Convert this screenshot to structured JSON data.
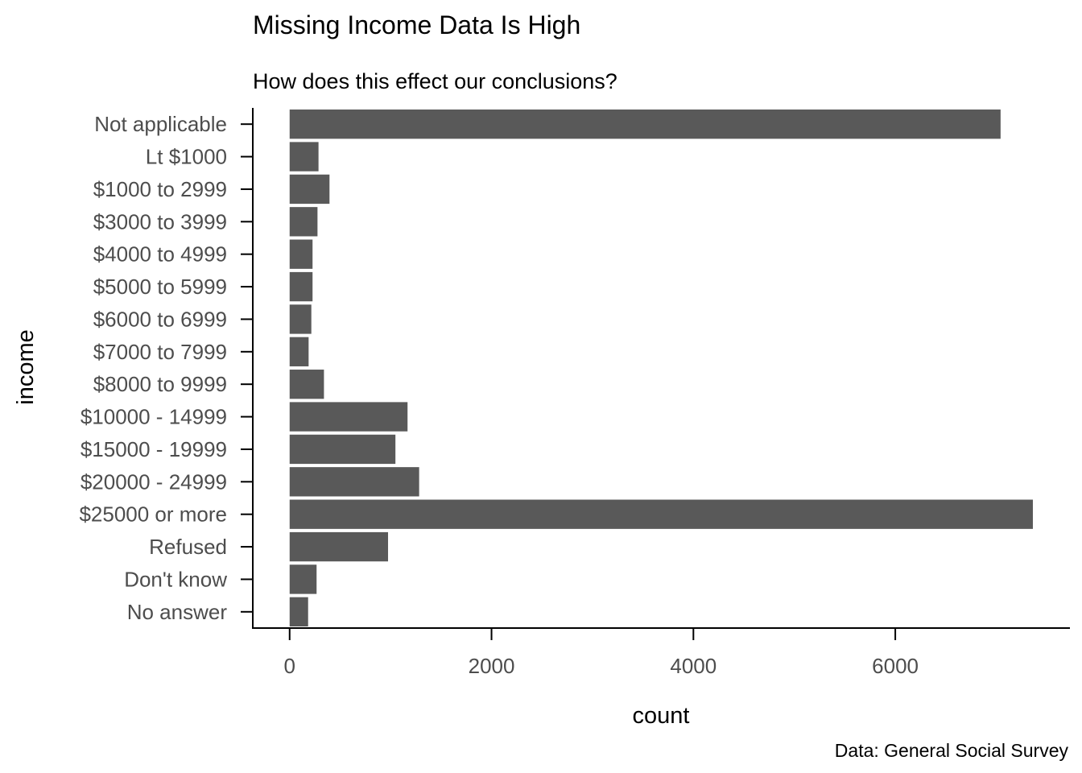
{
  "chart_data": {
    "type": "bar",
    "orientation": "horizontal",
    "title": "Missing Income Data Is High",
    "subtitle": "How does this effect our conclusions?",
    "xlabel": "count",
    "ylabel": "income",
    "caption": "Data: General Social Survey",
    "categories": [
      "Not applicable",
      "Lt $1000",
      "$1000 to 2999",
      "$3000 to 3999",
      "$4000 to 4999",
      "$5000 to 5999",
      "$6000 to 6999",
      "$7000 to 7999",
      "$8000 to 9999",
      "$10000 - 14999",
      "$15000 - 19999",
      "$20000 - 24999",
      "$25000 or more",
      "Refused",
      "Don't know",
      "No answer"
    ],
    "values": [
      7043,
      286,
      395,
      276,
      227,
      227,
      215,
      188,
      340,
      1168,
      1048,
      1283,
      7363,
      975,
      267,
      183
    ],
    "xlim": [
      -365,
      7730
    ],
    "xticks": [
      0,
      2000,
      4000,
      6000
    ],
    "xtick_labels": [
      "0",
      "2000",
      "4000",
      "6000"
    ],
    "grid": false,
    "colors": {
      "bar": "#595959",
      "tick_text": "#4d4d4d"
    }
  }
}
